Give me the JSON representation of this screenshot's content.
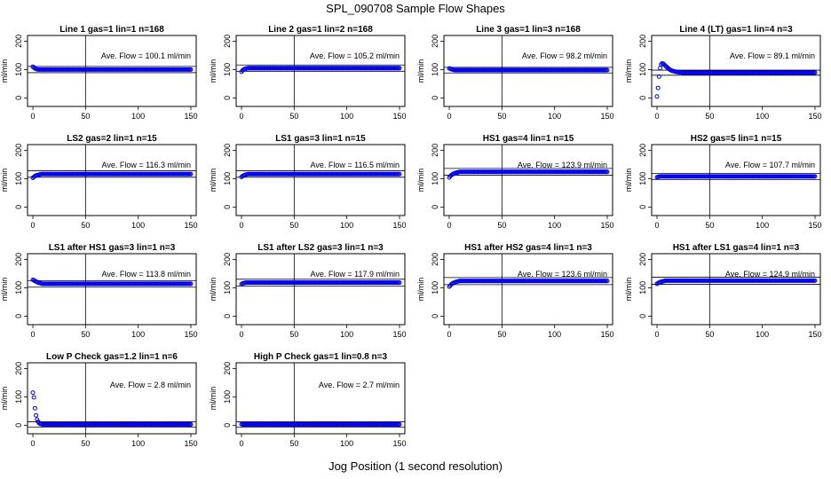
{
  "figure": {
    "title": "SPL_090708  Sample Flow Shapes",
    "xlabel": "Jog Position (1 second resolution)",
    "series_color": "#0000ee"
  },
  "chart_data": [
    {
      "type": "scatter",
      "title": "Line 1 gas=1 lin=1 n=168",
      "ylabel": "ml/min",
      "xlim": [
        0,
        150
      ],
      "ylim": [
        -30,
        220
      ],
      "xticks": [
        0,
        50,
        100,
        150
      ],
      "yticks": [
        0,
        100,
        200
      ],
      "vline_x": 50,
      "annotation": "Ave. Flow =  100.1  ml/min",
      "reference_lines": [
        111,
        89
      ],
      "points": {
        "x_start": 0,
        "x_end": 150,
        "step": 1,
        "values": [
          110,
          107,
          104,
          102,
          101
        ],
        "steady": 100
      }
    },
    {
      "type": "scatter",
      "title": "Line 2 gas=1 lin=2 n=168",
      "ylabel": "ml/min",
      "xlim": [
        0,
        150
      ],
      "ylim": [
        -30,
        220
      ],
      "xticks": [
        0,
        50,
        100,
        150
      ],
      "yticks": [
        0,
        100,
        200
      ],
      "vline_x": 50,
      "annotation": "Ave. Flow =  105.2  ml/min",
      "reference_lines": [
        116,
        94
      ],
      "points": {
        "x_start": 0,
        "x_end": 150,
        "step": 1,
        "values": [
          92,
          97,
          100,
          102,
          103,
          104
        ],
        "steady": 105
      }
    },
    {
      "type": "scatter",
      "title": "Line 3 gas=1 lin=3 n=168",
      "ylabel": "ml/min",
      "xlim": [
        0,
        150
      ],
      "ylim": [
        -30,
        220
      ],
      "xticks": [
        0,
        50,
        100,
        150
      ],
      "yticks": [
        0,
        100,
        200
      ],
      "vline_x": 50,
      "annotation": "Ave. Flow =  98.2  ml/min",
      "reference_lines": [
        108,
        88
      ],
      "points": {
        "x_start": 0,
        "x_end": 150,
        "step": 1,
        "values": [
          104,
          103,
          101,
          100,
          99
        ],
        "steady": 98
      }
    },
    {
      "type": "scatter",
      "title": "Line 4 (LT) gas=1 lin=4 n=3",
      "ylabel": "ml/min",
      "xlim": [
        0,
        150
      ],
      "ylim": [
        -30,
        220
      ],
      "xticks": [
        0,
        50,
        100,
        150
      ],
      "yticks": [
        0,
        100,
        200
      ],
      "vline_x": 50,
      "annotation": "Ave. Flow =  89.1  ml/min",
      "reference_lines": [
        98,
        80
      ],
      "points": {
        "x_start": 0,
        "x_end": 150,
        "step": 1,
        "values": [
          5,
          35,
          75,
          105,
          118,
          122,
          120,
          117,
          113,
          110,
          106,
          103,
          100,
          98,
          96,
          95,
          94,
          93,
          92,
          91,
          91,
          90,
          90,
          90,
          89
        ],
        "steady": 89
      }
    },
    {
      "type": "scatter",
      "title": "LS2 gas=2 lin=1 n=15",
      "ylabel": "ml/min",
      "xlim": [
        0,
        150
      ],
      "ylim": [
        -30,
        220
      ],
      "xticks": [
        0,
        50,
        100,
        150
      ],
      "yticks": [
        0,
        100,
        200
      ],
      "vline_x": 50,
      "annotation": "Ave. Flow =  116.3  ml/min",
      "reference_lines": [
        128,
        105
      ],
      "points": {
        "x_start": 0,
        "x_end": 150,
        "step": 1,
        "values": [
          103,
          106,
          109,
          111,
          112,
          113,
          114,
          115
        ],
        "steady": 116
      }
    },
    {
      "type": "scatter",
      "title": "LS1 gas=3 lin=1 n=15",
      "ylabel": "ml/min",
      "xlim": [
        0,
        150
      ],
      "ylim": [
        -30,
        220
      ],
      "xticks": [
        0,
        50,
        100,
        150
      ],
      "yticks": [
        0,
        100,
        200
      ],
      "vline_x": 50,
      "annotation": "Ave. Flow =  116.5  ml/min",
      "reference_lines": [
        128,
        105
      ],
      "points": {
        "x_start": 0,
        "x_end": 150,
        "step": 1,
        "values": [
          106,
          109,
          111,
          113,
          114,
          115
        ],
        "steady": 116
      }
    },
    {
      "type": "scatter",
      "title": "HS1 gas=4 lin=1 n=15",
      "ylabel": "ml/min",
      "xlim": [
        0,
        150
      ],
      "ylim": [
        -30,
        220
      ],
      "xticks": [
        0,
        50,
        100,
        150
      ],
      "yticks": [
        0,
        100,
        200
      ],
      "vline_x": 50,
      "annotation": "Ave. Flow =  123.9  ml/min",
      "reference_lines": [
        136,
        112
      ],
      "points": {
        "x_start": 0,
        "x_end": 150,
        "step": 1,
        "values": [
          104,
          109,
          112,
          115,
          117,
          119,
          120,
          121,
          122,
          123
        ],
        "steady": 124
      }
    },
    {
      "type": "scatter",
      "title": "HS2 gas=5 lin=1 n=15",
      "ylabel": "ml/min",
      "xlim": [
        0,
        150
      ],
      "ylim": [
        -30,
        220
      ],
      "xticks": [
        0,
        50,
        100,
        150
      ],
      "yticks": [
        0,
        100,
        200
      ],
      "vline_x": 50,
      "annotation": "Ave. Flow =  107.7  ml/min",
      "reference_lines": [
        118,
        97
      ],
      "points": {
        "x_start": 0,
        "x_end": 150,
        "step": 1,
        "values": [
          105,
          106,
          107
        ],
        "steady": 108
      }
    },
    {
      "type": "scatter",
      "title": "LS1 after HS1 gas=3 lin=1 n=3",
      "ylabel": "ml/min",
      "xlim": [
        0,
        150
      ],
      "ylim": [
        -30,
        220
      ],
      "xticks": [
        0,
        50,
        100,
        150
      ],
      "yticks": [
        0,
        100,
        200
      ],
      "vline_x": 50,
      "annotation": "Ave. Flow =  113.8  ml/min",
      "reference_lines": [
        125,
        102
      ],
      "points": {
        "x_start": 0,
        "x_end": 150,
        "step": 1,
        "values": [
          128,
          126,
          124,
          122,
          120,
          118,
          117,
          116,
          115
        ],
        "steady": 114
      }
    },
    {
      "type": "scatter",
      "title": "LS1 after LS2 gas=3 lin=1 n=3",
      "ylabel": "ml/min",
      "xlim": [
        0,
        150
      ],
      "ylim": [
        -30,
        220
      ],
      "xticks": [
        0,
        50,
        100,
        150
      ],
      "yticks": [
        0,
        100,
        200
      ],
      "vline_x": 50,
      "annotation": "Ave. Flow =  117.9  ml/min",
      "reference_lines": [
        130,
        106
      ],
      "points": {
        "x_start": 0,
        "x_end": 150,
        "step": 1,
        "values": [
          113,
          115,
          116,
          117
        ],
        "steady": 118
      }
    },
    {
      "type": "scatter",
      "title": "HS1 after HS2 gas=4 lin=1 n=3",
      "ylabel": "ml/min",
      "xlim": [
        0,
        150
      ],
      "ylim": [
        -30,
        220
      ],
      "xticks": [
        0,
        50,
        100,
        150
      ],
      "yticks": [
        0,
        100,
        200
      ],
      "vline_x": 50,
      "annotation": "Ave. Flow =  123.6  ml/min",
      "reference_lines": [
        136,
        111
      ],
      "points": {
        "x_start": 0,
        "x_end": 150,
        "step": 1,
        "values": [
          104,
          108,
          112,
          115,
          117,
          119,
          120,
          121,
          122,
          123
        ],
        "steady": 124
      }
    },
    {
      "type": "scatter",
      "title": "HS1 after LS1 gas=4 lin=1 n=3",
      "ylabel": "ml/min",
      "xlim": [
        0,
        150
      ],
      "ylim": [
        -30,
        220
      ],
      "xticks": [
        0,
        50,
        100,
        150
      ],
      "yticks": [
        0,
        100,
        200
      ],
      "vline_x": 50,
      "annotation": "Ave. Flow =  124.9  ml/min",
      "reference_lines": [
        137,
        112
      ],
      "points": {
        "x_start": 0,
        "x_end": 150,
        "step": 1,
        "values": [
          114,
          116,
          118,
          120,
          121,
          122,
          123,
          124
        ],
        "steady": 125
      }
    },
    {
      "type": "scatter",
      "title": "Low P Check gas=1.2 lin=1 n=6",
      "ylabel": "ml/min",
      "xlim": [
        0,
        150
      ],
      "ylim": [
        -30,
        220
      ],
      "xticks": [
        0,
        50,
        100,
        150
      ],
      "yticks": [
        0,
        100,
        200
      ],
      "vline_x": 50,
      "annotation": "Ave. Flow =  2.8  ml/min",
      "reference_lines": [
        12,
        -7
      ],
      "points": {
        "x_start": 0,
        "x_end": 150,
        "step": 1,
        "values": [
          115,
          98,
          60,
          35,
          20,
          12,
          7,
          5,
          4,
          3
        ],
        "steady": 3
      }
    },
    {
      "type": "scatter",
      "title": "High P Check gas=1 lin=0.8 n=3",
      "ylabel": "ml/min",
      "xlim": [
        0,
        150
      ],
      "ylim": [
        -30,
        220
      ],
      "xticks": [
        0,
        50,
        100,
        150
      ],
      "yticks": [
        0,
        100,
        200
      ],
      "vline_x": 50,
      "annotation": "Ave. Flow =  2.7  ml/min",
      "reference_lines": [
        12,
        -7
      ],
      "points": {
        "x_start": 0,
        "x_end": 150,
        "step": 1,
        "values": [
          4,
          3
        ],
        "steady": 3
      }
    }
  ]
}
